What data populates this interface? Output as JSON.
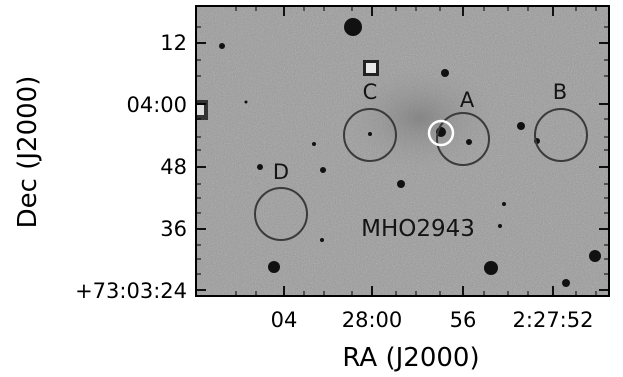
{
  "axes": {
    "xlabel": "RA (J2000)",
    "ylabel": "Dec (J2000)",
    "x_ticks": [
      "04",
      "28:00",
      "56",
      "2:27:52"
    ],
    "y_ticks": [
      "12",
      "04:00",
      "48",
      "36",
      "+73:03:24"
    ]
  },
  "object_label": "MHO2943",
  "apertures": [
    {
      "label": "A"
    },
    {
      "label": "B"
    },
    {
      "label": "C"
    },
    {
      "label": "D"
    }
  ],
  "colors": {
    "background_sky": "#9b9b9b",
    "aperture": "#3a3a3a",
    "marker": "#ffffff",
    "frame": "#000000"
  }
}
